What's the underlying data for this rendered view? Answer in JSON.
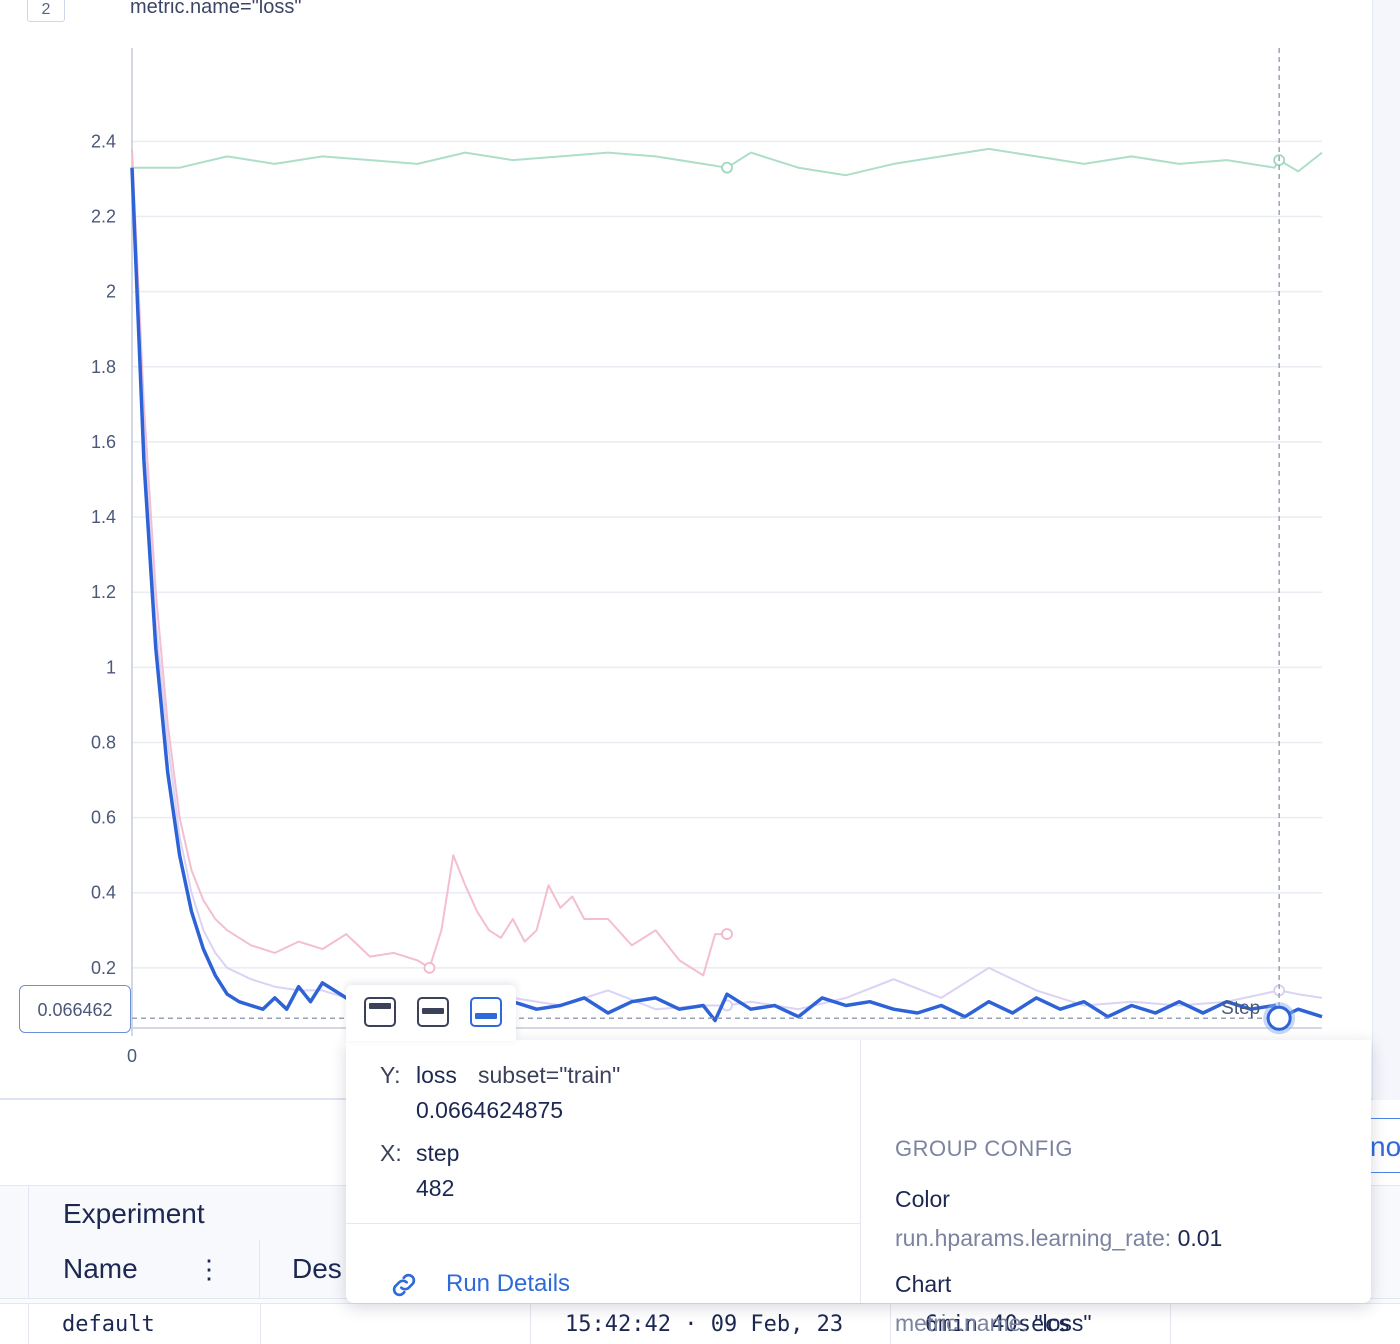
{
  "chart_header": {
    "index": "2",
    "title": "metric.name=\"loss\""
  },
  "chart_data": {
    "type": "line",
    "xlabel": "",
    "ylabel": "",
    "xlim": [
      0,
      500
    ],
    "ylim": [
      0.04,
      2.55
    ],
    "y_ticks": [
      "2.4",
      "2.2",
      "2",
      "1.8",
      "1.6",
      "1.4",
      "1.2",
      "1",
      "0.8",
      "0.6",
      "0.4",
      "0.2"
    ],
    "y_tick_values": [
      2.4,
      2.2,
      2.0,
      1.8,
      1.6,
      1.4,
      1.2,
      1.0,
      0.8,
      0.6,
      0.4,
      0.2
    ],
    "x_tick_labels": [
      "0"
    ],
    "x_tick_values": [
      0
    ],
    "grid": true,
    "series": [
      {
        "color": "#9fd9bc",
        "opacity": 0.85,
        "width": 2,
        "x": [
          0,
          20,
          40,
          60,
          80,
          100,
          120,
          140,
          160,
          180,
          200,
          220,
          240,
          250,
          260,
          280,
          300,
          320,
          340,
          360,
          380,
          400,
          420,
          440,
          460,
          480,
          482,
          490,
          500
        ],
        "y": [
          2.33,
          2.33,
          2.36,
          2.34,
          2.36,
          2.35,
          2.34,
          2.37,
          2.35,
          2.36,
          2.37,
          2.36,
          2.34,
          2.33,
          2.37,
          2.33,
          2.31,
          2.34,
          2.36,
          2.38,
          2.36,
          2.34,
          2.36,
          2.34,
          2.35,
          2.33,
          2.35,
          2.32,
          2.37
        ],
        "marker_at_x": [
          250,
          482
        ]
      },
      {
        "color": "#f2b8cb",
        "opacity": 0.9,
        "width": 2,
        "x": [
          0,
          5,
          10,
          15,
          20,
          25,
          30,
          35,
          40,
          45,
          50,
          55,
          60,
          70,
          80,
          90,
          100,
          110,
          120,
          125,
          130,
          135,
          140,
          145,
          150,
          155,
          160,
          165,
          170,
          175,
          180,
          185,
          190,
          200,
          210,
          220,
          230,
          240,
          245,
          250
        ],
        "y": [
          2.38,
          1.7,
          1.2,
          0.85,
          0.6,
          0.46,
          0.38,
          0.33,
          0.3,
          0.28,
          0.26,
          0.25,
          0.24,
          0.27,
          0.25,
          0.29,
          0.23,
          0.24,
          0.22,
          0.2,
          0.3,
          0.5,
          0.42,
          0.35,
          0.3,
          0.28,
          0.33,
          0.27,
          0.3,
          0.42,
          0.36,
          0.39,
          0.33,
          0.33,
          0.26,
          0.3,
          0.22,
          0.18,
          0.29,
          0.29
        ],
        "marker_at_x": [
          125,
          250
        ]
      },
      {
        "color": "#d6cef4",
        "opacity": 0.9,
        "width": 2,
        "x": [
          0,
          5,
          10,
          15,
          20,
          25,
          30,
          35,
          40,
          50,
          60,
          70,
          80,
          90,
          100,
          120,
          140,
          160,
          180,
          200,
          220,
          240,
          250,
          260,
          280,
          300,
          320,
          340,
          360,
          380,
          400,
          420,
          440,
          460,
          482,
          490,
          500
        ],
        "y": [
          2.33,
          1.62,
          1.12,
          0.8,
          0.55,
          0.4,
          0.3,
          0.24,
          0.2,
          0.17,
          0.15,
          0.14,
          0.14,
          0.12,
          0.13,
          0.11,
          0.12,
          0.12,
          0.1,
          0.14,
          0.09,
          0.1,
          0.1,
          0.11,
          0.09,
          0.12,
          0.17,
          0.12,
          0.2,
          0.14,
          0.1,
          0.11,
          0.1,
          0.11,
          0.14,
          0.13,
          0.12
        ],
        "marker_at_x": [
          250,
          482
        ]
      },
      {
        "color": "#2e63d8",
        "opacity": 1.0,
        "width": 3.5,
        "x": [
          0,
          5,
          10,
          15,
          20,
          25,
          30,
          35,
          40,
          45,
          50,
          55,
          60,
          65,
          70,
          75,
          80,
          85,
          90,
          95,
          100,
          105,
          110,
          115,
          120,
          130,
          140,
          150,
          160,
          170,
          180,
          190,
          200,
          210,
          220,
          230,
          240,
          245,
          250,
          260,
          270,
          280,
          290,
          300,
          310,
          320,
          330,
          340,
          350,
          360,
          370,
          380,
          390,
          400,
          410,
          420,
          430,
          440,
          450,
          460,
          470,
          480,
          482,
          490,
          500
        ],
        "y": [
          2.33,
          1.55,
          1.05,
          0.72,
          0.5,
          0.35,
          0.25,
          0.18,
          0.13,
          0.11,
          0.1,
          0.09,
          0.12,
          0.09,
          0.15,
          0.11,
          0.16,
          0.14,
          0.12,
          0.09,
          0.1,
          0.1,
          0.09,
          0.13,
          0.1,
          0.12,
          0.14,
          0.1,
          0.11,
          0.09,
          0.1,
          0.12,
          0.08,
          0.11,
          0.12,
          0.09,
          0.1,
          0.06,
          0.13,
          0.09,
          0.1,
          0.07,
          0.12,
          0.1,
          0.11,
          0.09,
          0.08,
          0.1,
          0.07,
          0.11,
          0.08,
          0.12,
          0.09,
          0.11,
          0.07,
          0.1,
          0.08,
          0.11,
          0.08,
          0.11,
          0.09,
          0.1,
          0.066,
          0.09,
          0.07
        ],
        "marker_at_x": [
          482
        ]
      }
    ],
    "crosshair": {
      "x": 482,
      "y": 0.066
    },
    "y_readout": "0.066462",
    "step_label": "Step"
  },
  "tooltip": {
    "y_label": "Y:",
    "y_metric": "loss",
    "y_context": "subset=\"train\"",
    "y_value": "0.0664624875",
    "x_label": "X:",
    "x_metric": "step",
    "x_value": "482",
    "run_details": "Run Details",
    "group_config_heading": "GROUP CONFIG",
    "color_heading": "Color",
    "color_key": "run.hparams.learning_rate:",
    "color_value": "0.01",
    "chart_heading": "Chart",
    "chart_key": "metric.name:",
    "chart_value": "\"loss\""
  },
  "table": {
    "group_header": "Experiment",
    "name_header": "Name",
    "kebab": "⋮",
    "desc_header": "Des",
    "row": {
      "name": "default",
      "date": "15:42:42 · 09 Feb, 23",
      "duration": "6min 40secs"
    }
  },
  "side_tab_text": "no"
}
